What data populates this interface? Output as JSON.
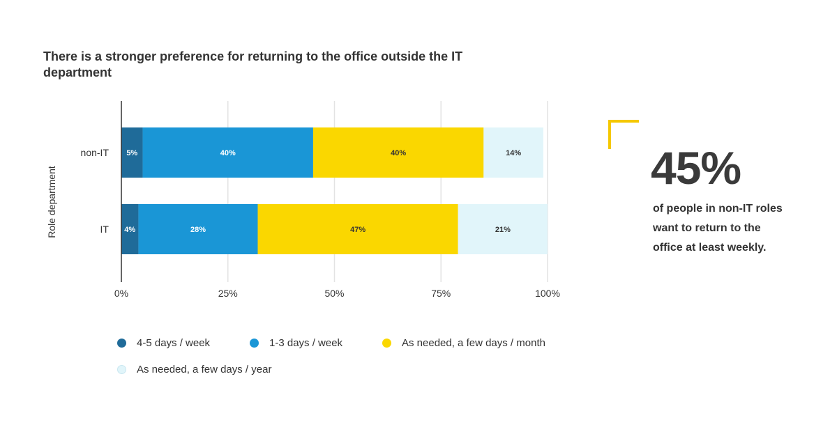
{
  "chart_data": {
    "type": "bar",
    "orientation": "horizontal",
    "stacked": true,
    "title": "There is a stronger preference for returning to the office outside the IT department",
    "ylabel": "Role department",
    "xlabel": "",
    "categories": [
      "non-IT",
      "IT"
    ],
    "x_ticks": [
      "0%",
      "25%",
      "50%",
      "75%",
      "100%"
    ],
    "xlim": [
      0,
      100
    ],
    "grid": true,
    "legend_position": "bottom",
    "series": [
      {
        "name": "4-5 days / week",
        "color": "#1f6b99",
        "values": [
          5,
          4
        ],
        "labels": [
          "5%",
          "4%"
        ],
        "label_color": "#ffffff"
      },
      {
        "name": "1-3 days / week",
        "color": "#1a96d6",
        "values": [
          40,
          28
        ],
        "labels": [
          "40%",
          "28%"
        ],
        "label_color": "#ffffff"
      },
      {
        "name": "As needed, a few days / month",
        "color": "#fad700",
        "values": [
          40,
          47
        ],
        "labels": [
          "40%",
          "47%"
        ],
        "label_color": "#333333"
      },
      {
        "name": "As needed, a few days / year",
        "color": "#e1f5fa",
        "values": [
          14,
          21
        ],
        "labels": [
          "14%",
          "21%"
        ],
        "label_color": "#333333"
      }
    ]
  },
  "callout": {
    "value": "45%",
    "description": "of people in non-IT roles want to return to the office at least weekly.",
    "accent_color": "#f5c800"
  }
}
